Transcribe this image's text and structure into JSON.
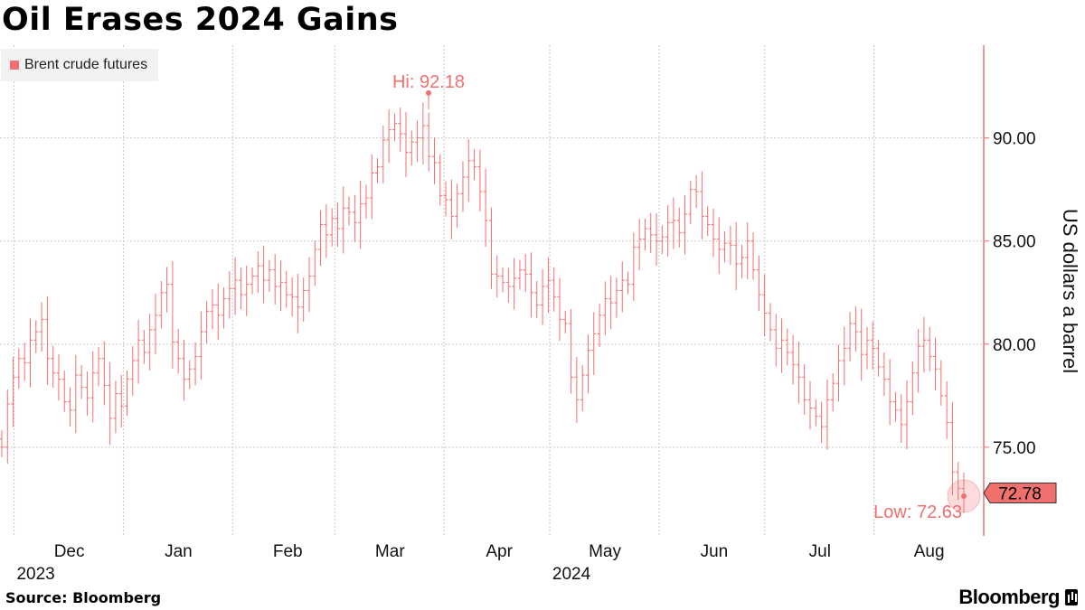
{
  "header": {
    "title": "Oil Erases 2024 Gains"
  },
  "footer": {
    "source": "Source: Bloomberg",
    "brand": "Bloomberg"
  },
  "colors": {
    "series": "#f0706e",
    "grid": "#c8c8c8"
  },
  "chart_data": {
    "type": "bar",
    "style": "ohlc",
    "title": "Oil Erases 2024 Gains",
    "ylabel": "US dollars a barrel",
    "ylim": [
      70.7,
      94.5
    ],
    "yticks": [
      75,
      80,
      85,
      90
    ],
    "ytick_labels": [
      "75.00",
      "80.00",
      "85.00",
      "90.00"
    ],
    "xlabels": [
      {
        "label": "Dec",
        "year": "2023",
        "date": "2023-12-01"
      },
      {
        "label": "Jan",
        "year": "",
        "date": "2024-01-01"
      },
      {
        "label": "Feb",
        "year": "",
        "date": "2024-02-01"
      },
      {
        "label": "Mar",
        "year": "",
        "date": "2024-03-01"
      },
      {
        "label": "Apr",
        "year": "",
        "date": "2024-04-01"
      },
      {
        "label": "May",
        "year": "2024",
        "date": "2024-05-01"
      },
      {
        "label": "Jun",
        "year": "",
        "date": "2024-06-01"
      },
      {
        "label": "Jul",
        "year": "",
        "date": "2024-07-01"
      },
      {
        "label": "Aug",
        "year": "",
        "date": "2024-08-01"
      }
    ],
    "legend": {
      "label": "Brent crude futures",
      "position": "top-left"
    },
    "series": [
      {
        "name": "Brent crude futures",
        "start_date": "2023-11-27",
        "close": [
          75.0,
          77.1,
          78.4,
          79.3,
          79.1,
          80.2,
          80.6,
          81.2,
          79.3,
          78.6,
          78.3,
          77.2,
          76.8,
          78.5,
          77.9,
          77.4,
          78.6,
          79.3,
          78.0,
          76.4,
          77.6,
          77.0,
          78.3,
          79.2,
          80.2,
          79.6,
          80.7,
          81.4,
          82.5,
          82.9,
          80.1,
          79.3,
          78.3,
          78.8,
          79.4,
          80.6,
          81.6,
          81.9,
          81.4,
          82.2,
          82.7,
          83.1,
          82.4,
          82.9,
          83.3,
          83.8,
          83.1,
          83.6,
          82.8,
          83.0,
          82.4,
          82.3,
          81.8,
          82.6,
          83.3,
          84.6,
          85.8,
          85.3,
          86.1,
          85.6,
          86.6,
          86.4,
          85.9,
          86.8,
          87.1,
          88.3,
          88.6,
          89.9,
          90.4,
          90.7,
          90.2,
          89.3,
          89.8,
          90.0,
          90.6,
          89.1,
          88.8,
          87.2,
          87.0,
          86.2,
          87.3,
          88.1,
          88.9,
          88.6,
          87.4,
          86.0,
          83.4,
          83.3,
          83.0,
          82.8,
          83.2,
          83.6,
          83.4,
          82.5,
          81.9,
          82.8,
          83.1,
          82.3,
          81.2,
          81.0,
          78.4,
          77.3,
          78.5,
          79.7,
          80.5,
          81.4,
          82.2,
          82.0,
          82.6,
          83.1,
          82.9,
          84.7,
          85.1,
          85.6,
          85.3,
          85.0,
          85.2,
          85.9,
          86.0,
          85.4,
          86.3,
          87.5,
          87.4,
          86.2,
          85.8,
          85.1,
          84.6,
          84.9,
          84.8,
          83.9,
          84.2,
          85.0,
          83.6,
          82.4,
          81.5,
          80.7,
          79.8,
          80.2,
          79.6,
          79.0,
          78.4,
          77.3,
          76.9,
          76.5,
          76.0,
          77.3,
          78.1,
          79.2,
          79.8,
          81.0,
          80.6,
          79.5,
          80.2,
          79.8,
          78.9,
          78.3,
          77.2,
          76.8,
          76.1,
          77.2,
          78.6,
          79.9,
          80.2,
          79.4,
          78.8,
          77.5,
          76.2,
          73.8,
          73.0,
          72.7
        ]
      }
    ],
    "annotations": {
      "high": {
        "label": "Hi: 92.18",
        "value": 92.18
      },
      "low": {
        "label": "Low: 72.63",
        "value": 72.63
      },
      "last": {
        "label": "72.78",
        "value": 72.78
      }
    }
  }
}
